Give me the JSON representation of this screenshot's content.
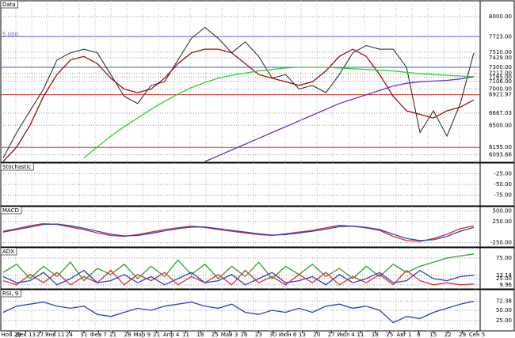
{
  "chart_data": [
    {
      "type": "line",
      "title": "Data",
      "annotation": "5 000",
      "ylim": [
        5990,
        8217
      ],
      "yticks": [
        {
          "value": 8000,
          "label": "8000.00"
        },
        {
          "value": 7723,
          "label": "7723.00"
        },
        {
          "value": 7510,
          "label": "7510.00"
        },
        {
          "value": 7429,
          "label": "7429.00"
        },
        {
          "value": 7300,
          "label": "7300.00"
        },
        {
          "value": 7217,
          "label": "7217.00"
        },
        {
          "value": 7165,
          "label": "7165.00"
        },
        {
          "value": 7106,
          "label": "7106.00"
        },
        {
          "value": 7000,
          "label": "7000.00"
        },
        {
          "value": 6921.97,
          "label": "6921.97"
        },
        {
          "value": 6667.03,
          "label": "6667.03"
        },
        {
          "value": 6500,
          "label": "6500.00"
        },
        {
          "value": 6195,
          "label": "6195.00"
        },
        {
          "value": 6093.66,
          "label": "6093.66"
        }
      ],
      "levels": [
        {
          "value": 7723,
          "color": "#7b5fc8"
        },
        {
          "value": 7300,
          "color": "#4060c0"
        },
        {
          "value": 6921.97,
          "color": "#e03030"
        },
        {
          "value": 6195,
          "color": "#e03030"
        }
      ],
      "series": [
        {
          "color": "#222222",
          "values": [
            6050,
            6400,
            6700,
            7000,
            7400,
            7500,
            7550,
            7500,
            7200,
            6900,
            6800,
            7050,
            7100,
            7400,
            7700,
            7850,
            7700,
            7500,
            7650,
            7450,
            7150,
            7200,
            7000,
            7050,
            6950,
            7200,
            7500,
            7600,
            7550,
            7550,
            7300,
            6400,
            6700,
            6350,
            6800,
            7500
          ]
        },
        {
          "color": "#9b1010",
          "values": [
            6000,
            6200,
            6500,
            6900,
            7200,
            7400,
            7450,
            7350,
            7150,
            7000,
            6950,
            7000,
            7150,
            7350,
            7500,
            7550,
            7550,
            7500,
            7350,
            7200,
            7150,
            7100,
            7050,
            7100,
            7250,
            7450,
            7550,
            7450,
            7200,
            6900,
            6700,
            6650,
            6600,
            6700,
            6750,
            6850
          ]
        },
        {
          "color": "#30d030",
          "values": [
            null,
            null,
            null,
            null,
            null,
            null,
            6050,
            6200,
            6350,
            6480,
            6600,
            6720,
            6830,
            6930,
            7020,
            7090,
            7150,
            7190,
            7220,
            7250,
            7270,
            7290,
            7300,
            7300,
            7300,
            7290,
            7280,
            7270,
            7260,
            7250,
            7230,
            7210,
            7200,
            7190,
            7180,
            7170
          ]
        },
        {
          "color": "#7030c8",
          "values": [
            null,
            null,
            null,
            null,
            null,
            null,
            null,
            null,
            null,
            null,
            null,
            null,
            null,
            null,
            null,
            6000,
            6080,
            6160,
            6240,
            6320,
            6400,
            6480,
            6560,
            6640,
            6720,
            6800,
            6860,
            6920,
            6980,
            7040,
            7080,
            7100,
            7110,
            7120,
            7140,
            7170
          ]
        }
      ]
    },
    {
      "type": "line",
      "title": "Stochastic",
      "ylim": [
        -100,
        0
      ],
      "yticks": [
        {
          "value": -25,
          "label": "-25.00"
        },
        {
          "value": -50,
          "label": "-50.00"
        },
        {
          "value": -75,
          "label": "-75.00"
        }
      ],
      "series": []
    },
    {
      "type": "line",
      "title": "MACD",
      "ylim": [
        -350,
        600
      ],
      "yticks": [
        {
          "value": 500,
          "label": "500.00"
        },
        {
          "value": 250,
          "label": "250.00"
        },
        {
          "value": -250,
          "label": "-250.00"
        }
      ],
      "series": [
        {
          "color": "#d03030",
          "values": [
            20,
            80,
            150,
            200,
            180,
            120,
            60,
            -20,
            -80,
            -100,
            -60,
            0,
            60,
            100,
            140,
            110,
            60,
            20,
            -20,
            -60,
            -80,
            -40,
            0,
            40,
            100,
            160,
            140,
            100,
            40,
            -100,
            -200,
            -220,
            -150,
            -50,
            80,
            150
          ]
        },
        {
          "color": "#3040c0",
          "values": [
            0,
            60,
            120,
            180,
            190,
            150,
            90,
            20,
            -50,
            -90,
            -80,
            -30,
            30,
            80,
            120,
            120,
            80,
            40,
            0,
            -40,
            -70,
            -60,
            -20,
            20,
            70,
            130,
            140,
            110,
            60,
            -50,
            -150,
            -200,
            -180,
            -100,
            20,
            110
          ]
        }
      ]
    },
    {
      "type": "line",
      "title": "ADX",
      "ylim": [
        0,
        100
      ],
      "yticks": [
        {
          "value": 75,
          "label": "75.00"
        },
        {
          "value": 33.14,
          "label": "33.14"
        },
        {
          "value": 25,
          "label": "25.00"
        },
        {
          "value": 9.96,
          "label": "9.96"
        }
      ],
      "series": [
        {
          "color": "#30a030",
          "values": [
            40,
            60,
            25,
            55,
            30,
            65,
            20,
            50,
            35,
            60,
            25,
            55,
            30,
            70,
            35,
            60,
            25,
            55,
            30,
            65,
            25,
            55,
            35,
            60,
            30,
            50,
            25,
            55,
            30,
            60,
            40,
            55,
            65,
            75,
            80,
            85
          ]
        },
        {
          "color": "#e03030",
          "values": [
            20,
            10,
            35,
            15,
            40,
            10,
            30,
            15,
            45,
            10,
            35,
            20,
            40,
            10,
            30,
            15,
            35,
            10,
            45,
            15,
            30,
            10,
            35,
            15,
            40,
            10,
            30,
            15,
            35,
            10,
            45,
            20,
            10,
            15,
            10,
            12
          ]
        },
        {
          "color": "#3040c0",
          "values": [
            30,
            15,
            20,
            40,
            10,
            25,
            45,
            15,
            20,
            35,
            15,
            30,
            10,
            25,
            40,
            15,
            20,
            35,
            10,
            25,
            40,
            15,
            20,
            30,
            10,
            35,
            15,
            25,
            40,
            15,
            20,
            45,
            25,
            20,
            30,
            33
          ]
        }
      ]
    },
    {
      "type": "line",
      "title": "RSI, 9",
      "ylim": [
        0,
        100
      ],
      "yticks": [
        {
          "value": 72.38,
          "label": "72.38"
        },
        {
          "value": 50,
          "label": "50.00"
        },
        {
          "value": 25,
          "label": "25.00"
        }
      ],
      "x_labels": [
        "Ноя 29",
        "Дек 13",
        "27",
        "Янв 11",
        "24",
        "31",
        "Фев 7",
        "21",
        "28",
        "Мар 9",
        "21",
        "Апр 4",
        "11",
        "18",
        "25",
        "Май 3",
        "16",
        "23",
        "30",
        "Июн 6",
        "13",
        "20",
        "27",
        "Июл 4",
        "11",
        "18",
        "25",
        "Авг 1",
        "8",
        "15",
        "22",
        "29",
        "Сен 5"
      ],
      "series": [
        {
          "color": "#3040c0",
          "values": [
            45,
            60,
            65,
            70,
            60,
            55,
            60,
            40,
            35,
            45,
            55,
            50,
            60,
            65,
            70,
            60,
            55,
            65,
            45,
            40,
            50,
            45,
            55,
            45,
            60,
            65,
            55,
            60,
            50,
            20,
            35,
            30,
            45,
            55,
            65,
            72
          ]
        }
      ]
    }
  ]
}
